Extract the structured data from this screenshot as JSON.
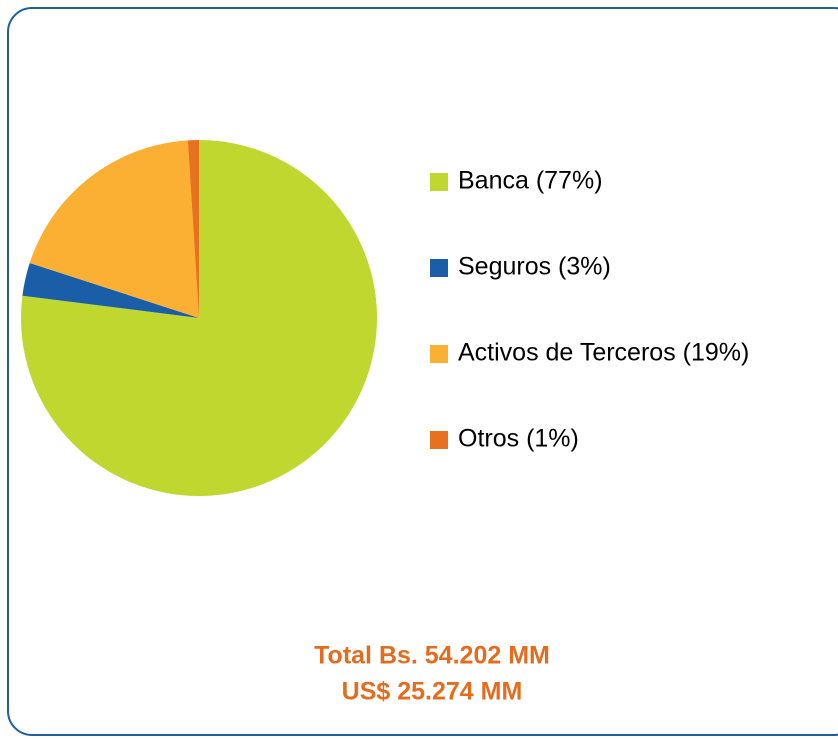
{
  "chart_data": {
    "type": "pie",
    "categories": [
      "Banca (77%)",
      "Seguros (3%)",
      "Activos de Terceros (19%)",
      "Otros (1%)"
    ],
    "values": [
      77,
      3,
      19,
      1
    ],
    "colors": [
      "#c0d72f",
      "#1a5ea8",
      "#fbb034",
      "#e8711f"
    ],
    "annotations": [
      "Total Bs. 54.202 MM",
      "US$ 25.274 MM"
    ]
  }
}
